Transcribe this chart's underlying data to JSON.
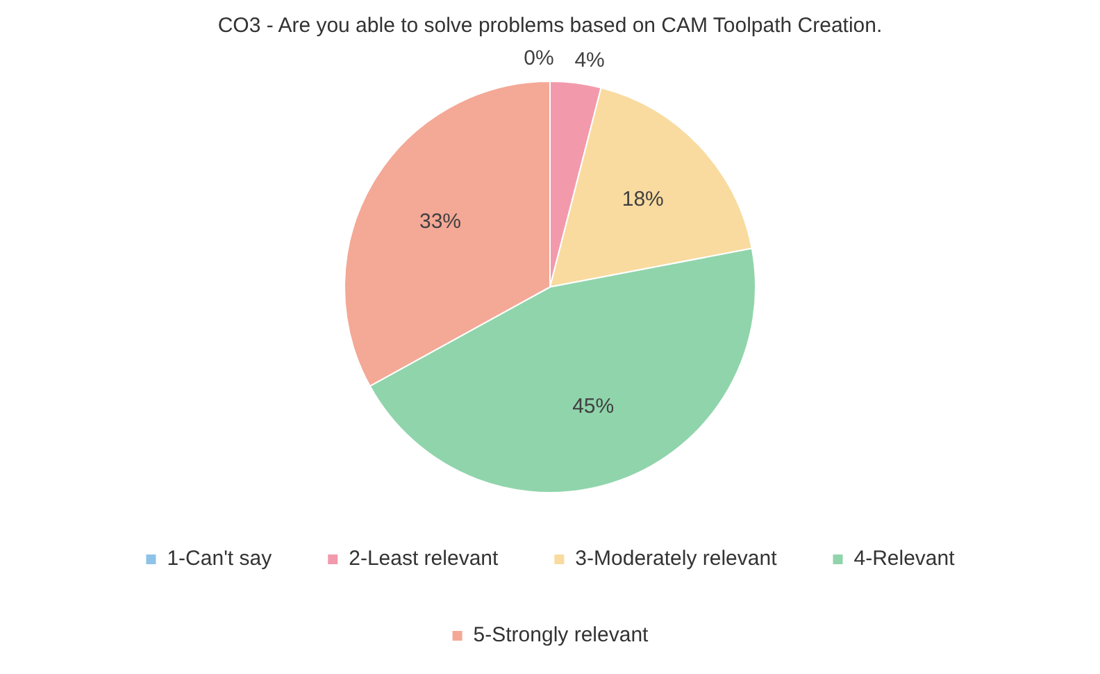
{
  "chart_data": {
    "type": "pie",
    "title": "CO3 - Are you able to solve problems based on CAM Toolpath Creation.",
    "categories": [
      "1-Can't say",
      "2-Least relevant",
      "3-Moderately relevant",
      "4-Relevant",
      "5-Strongly relevant"
    ],
    "values": [
      0,
      4,
      18,
      45,
      33
    ],
    "value_labels": [
      "0%",
      "4%",
      "18%",
      "45%",
      "33%"
    ],
    "colors": [
      "#8ec3e8",
      "#f29aac",
      "#f9dba0",
      "#90d4ab",
      "#f4a896"
    ],
    "legend": "bottom"
  }
}
